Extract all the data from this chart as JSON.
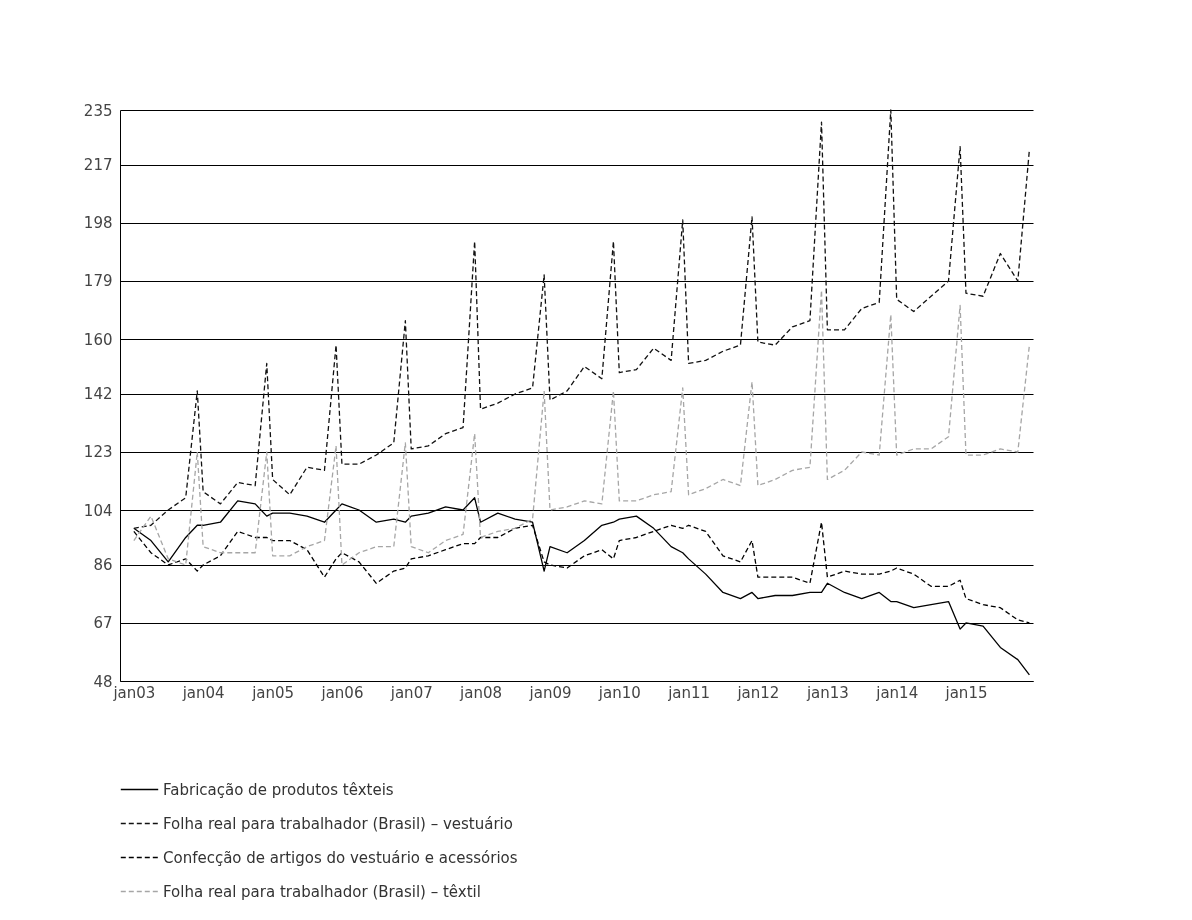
{
  "chart_data": {
    "type": "line",
    "x": [
      "2003-01",
      "2003-04",
      "2003-07",
      "2003-10",
      "2003-12",
      "2004-01",
      "2004-04",
      "2004-07",
      "2004-10",
      "2004-12",
      "2005-01",
      "2005-04",
      "2005-07",
      "2005-10",
      "2005-12",
      "2006-01",
      "2006-04",
      "2006-07",
      "2006-10",
      "2006-12",
      "2007-01",
      "2007-04",
      "2007-07",
      "2007-10",
      "2007-12",
      "2008-01",
      "2008-04",
      "2008-07",
      "2008-10",
      "2008-12",
      "2009-01",
      "2009-04",
      "2009-07",
      "2009-10",
      "2009-12",
      "2010-01",
      "2010-04",
      "2010-07",
      "2010-10",
      "2010-12",
      "2011-01",
      "2011-04",
      "2011-07",
      "2011-10",
      "2011-12",
      "2012-01",
      "2012-04",
      "2012-07",
      "2012-10",
      "2012-12",
      "2013-01",
      "2013-04",
      "2013-07",
      "2013-10",
      "2013-12",
      "2014-01",
      "2014-04",
      "2014-07",
      "2014-10",
      "2014-12",
      "2015-01",
      "2015-04",
      "2015-07",
      "2015-10",
      "2015-12"
    ],
    "series": [
      {
        "name": "Fabricação de produtos têxteis",
        "color": "#000000",
        "line_style": "solid",
        "values": [
          98,
          94,
          87,
          95,
          99,
          99,
          100,
          107,
          106,
          102,
          103,
          103,
          102,
          100,
          104,
          106,
          104,
          100,
          101,
          100,
          102,
          103,
          105,
          104,
          108,
          100,
          103,
          101,
          100,
          84,
          92,
          90,
          94,
          99,
          100,
          101,
          102,
          98,
          92,
          90,
          88,
          83,
          77,
          75,
          77,
          75,
          76,
          76,
          77,
          77,
          80,
          77,
          75,
          77,
          74,
          74,
          72,
          73,
          74,
          65,
          67,
          66,
          59,
          55,
          50
        ]
      },
      {
        "name": "Folha real para trabalhador (Brasil) – vestuário",
        "color": "#111111",
        "line_style": "dashed",
        "values": [
          98,
          99,
          104,
          108,
          143,
          110,
          106,
          113,
          112,
          152,
          114,
          109,
          118,
          117,
          158,
          119,
          119,
          122,
          126,
          166,
          124,
          125,
          129,
          131,
          192,
          137,
          139,
          142,
          144,
          181,
          140,
          143,
          151,
          147,
          192,
          149,
          150,
          157,
          153,
          199,
          152,
          153,
          156,
          158,
          200,
          159,
          158,
          164,
          166,
          231,
          163,
          163,
          170,
          172,
          235,
          173,
          169,
          174,
          179,
          223,
          175,
          174,
          188,
          179,
          222
        ]
      },
      {
        "name": "Confecção de artigos do vestuário e acessórios",
        "color": "#000000",
        "line_style": "dashed",
        "values": [
          97,
          90,
          86,
          88,
          84,
          86,
          89,
          97,
          95,
          95,
          94,
          94,
          91,
          82,
          88,
          90,
          87,
          80,
          84,
          85,
          88,
          89,
          91,
          93,
          93,
          95,
          95,
          98,
          99,
          87,
          86,
          85,
          89,
          91,
          88,
          94,
          95,
          97,
          99,
          98,
          99,
          97,
          89,
          87,
          94,
          82,
          82,
          82,
          80,
          100,
          82,
          84,
          83,
          83,
          84,
          85,
          83,
          79,
          79,
          81,
          75,
          73,
          72,
          68,
          67
        ]
      },
      {
        "name": "Folha real para trabalhador (Brasil) – têxtil",
        "color": "#a6a6a6",
        "line_style": "dashed",
        "values": [
          94,
          102,
          88,
          86,
          123,
          92,
          90,
          90,
          90,
          123,
          89,
          89,
          92,
          94,
          125,
          86,
          90,
          92,
          92,
          126,
          92,
          90,
          94,
          96,
          129,
          95,
          97,
          98,
          101,
          143,
          104,
          105,
          107,
          106,
          143,
          107,
          107,
          109,
          110,
          144,
          109,
          111,
          114,
          112,
          146,
          112,
          114,
          117,
          118,
          176,
          114,
          117,
          123,
          122,
          168,
          122,
          124,
          124,
          128,
          171,
          122,
          122,
          124,
          123,
          158
        ]
      }
    ],
    "xlim": [
      "2002-10-20",
      "2015-12-20"
    ],
    "xticks": [
      {
        "value": "2003-01",
        "label": "jan03"
      },
      {
        "value": "2004-01",
        "label": "jan04"
      },
      {
        "value": "2005-01",
        "label": "jan05"
      },
      {
        "value": "2006-01",
        "label": "jan06"
      },
      {
        "value": "2007-01",
        "label": "jan07"
      },
      {
        "value": "2008-01",
        "label": "jan08"
      },
      {
        "value": "2009-01",
        "label": "jan09"
      },
      {
        "value": "2010-01",
        "label": "jan10"
      },
      {
        "value": "2011-01",
        "label": "jan11"
      },
      {
        "value": "2012-01",
        "label": "jan12"
      },
      {
        "value": "2013-01",
        "label": "jan13"
      },
      {
        "value": "2014-01",
        "label": "jan14"
      },
      {
        "value": "2015-01",
        "label": "jan15"
      }
    ],
    "ylim": [
      48,
      235
    ],
    "yticks": [
      48,
      67,
      86,
      104,
      123,
      142,
      160,
      179,
      198,
      217,
      235
    ],
    "grid": "y",
    "legend": "bottom",
    "marker": "none"
  }
}
